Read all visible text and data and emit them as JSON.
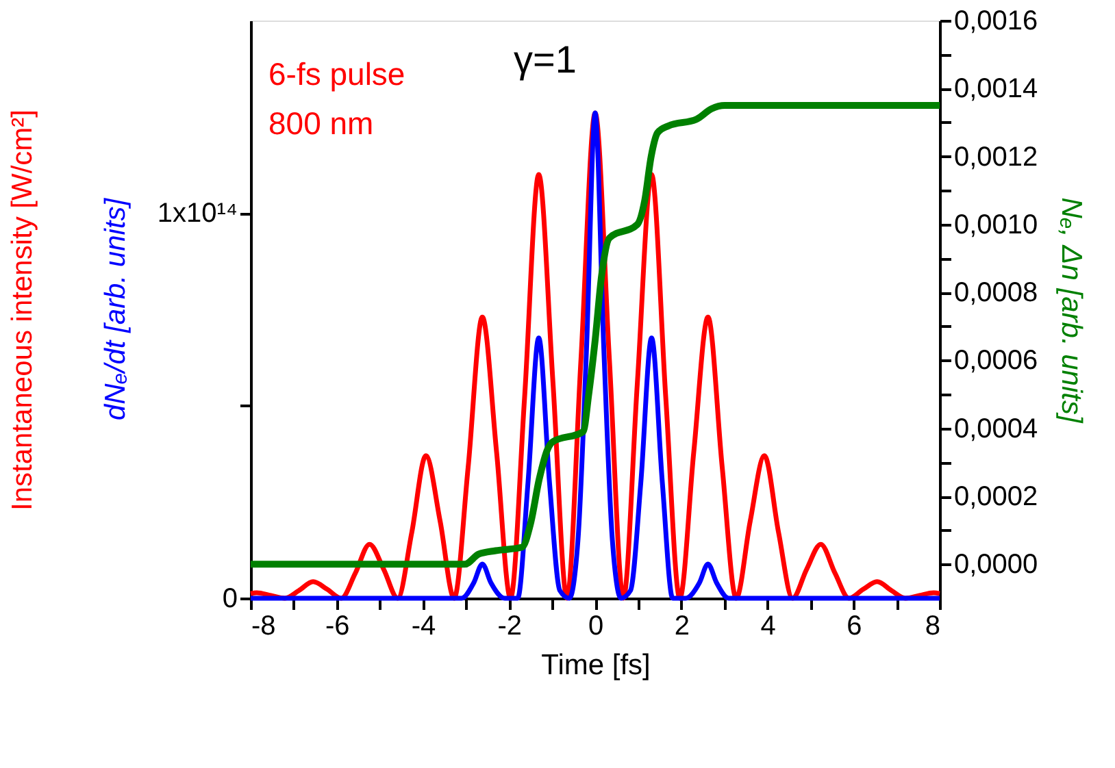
{
  "chart_data": {
    "type": "line",
    "annotations": [
      "6-fs pulse",
      "800 nm",
      "γ=1"
    ],
    "xlabel": "Time [fs]",
    "ylabel": "Instantaneous intensity [W/cm²]",
    "y2label": "Nₑ, Δn [arb. units]",
    "xlim": [
      -8,
      8
    ],
    "xticks": [
      -8,
      {
        "value": -7,
        "label": null
      },
      -6,
      {
        "value": -5,
        "label": null
      },
      -4,
      {
        "value": -3,
        "label": null
      },
      -2,
      {
        "value": -1,
        "label": null
      },
      0,
      {
        "value": 1,
        "label": null
      },
      2,
      {
        "value": 3,
        "label": null
      },
      4,
      {
        "value": 5,
        "label": null
      },
      6,
      {
        "value": 7,
        "label": null
      },
      8
    ],
    "ylim": [
      0,
      150000000000000.0
    ],
    "yticks": [
      0,
      {
        "value": 50000000000000.0,
        "label": null
      },
      {
        "value": 100000000000000.0,
        "label": "1x10¹⁴"
      }
    ],
    "y2lim": [
      -0.0001,
      0.0016
    ],
    "y2ticks": [
      {
        "value": 0,
        "label": "0,0000"
      },
      {
        "value": 0.0001,
        "label": null
      },
      {
        "value": 0.0002,
        "label": "0,0002"
      },
      {
        "value": 0.0003,
        "label": null
      },
      {
        "value": 0.0004,
        "label": "0,0004"
      },
      {
        "value": 0.0005,
        "label": null
      },
      {
        "value": 0.0006,
        "label": "0,0006"
      },
      {
        "value": 0.0007,
        "label": null
      },
      {
        "value": 0.0008,
        "label": "0,0008"
      },
      {
        "value": 0.0009,
        "label": null
      },
      {
        "value": 0.001,
        "label": "0,0010"
      },
      {
        "value": 0.0011,
        "label": null
      },
      {
        "value": 0.0012,
        "label": "0,0012"
      },
      {
        "value": 0.0013,
        "label": null
      },
      {
        "value": 0.0014,
        "label": "0,0014"
      },
      {
        "value": 0.0015,
        "label": null
      },
      {
        "value": 0.0016,
        "label": "0,0016"
      }
    ],
    "grid": false,
    "series": [
      {
        "color": "#ff0000",
        "x": [
          -8,
          -7.86,
          -7.53,
          -7.205,
          -6.88,
          -6.55,
          -6.22,
          -5.895,
          -5.57,
          -5.24,
          -4.91,
          -4.585,
          -4.26,
          -3.93,
          -3.6,
          -3.275,
          -2.95,
          -2.62,
          -2.29,
          -1.965,
          -1.64,
          -1.31,
          -0.98,
          -0.655,
          -0.33,
          0,
          0.33,
          0.655,
          0.98,
          1.31,
          1.64,
          1.965,
          2.29,
          2.62,
          2.95,
          3.275,
          3.6,
          3.93,
          4.26,
          4.585,
          4.91,
          5.24,
          5.57,
          5.895,
          6.22,
          6.55,
          6.88,
          7.205,
          7.53,
          7.86,
          8
        ],
        "values": [
          1200000000000.0,
          1400000000000.0,
          700000000000.0,
          0,
          2000000000000.0,
          4300000000000.0,
          2300000000000.0,
          0,
          6500000000000.0,
          14000000000000.0,
          7500000000000.0,
          0,
          17000000000000.0,
          37000000000000.0,
          20000000000000.0,
          0,
          34000000000000.0,
          73000000000000.0,
          38000000000000.0,
          0,
          52000000000000.0,
          110000000000000.0,
          56000000000000.0,
          0,
          62000000000000.0,
          126000000000000.0,
          62000000000000.0,
          0,
          56000000000000.0,
          110000000000000.0,
          52000000000000.0,
          0,
          38000000000000.0,
          73000000000000.0,
          34000000000000.0,
          0,
          20000000000000.0,
          37000000000000.0,
          17000000000000.0,
          0,
          7500000000000.0,
          14000000000000.0,
          6500000000000.0,
          0,
          2300000000000.0,
          4300000000000.0,
          2000000000000.0,
          0,
          700000000000.0,
          1400000000000.0,
          1200000000000.0
        ]
      },
      {
        "name": "dNₑ/dt [arb. units]",
        "color": "#0000ff",
        "x": [
          -8,
          -3.1,
          -2.82,
          -2.62,
          -2.42,
          -2.1,
          -1.8,
          -1.56,
          -1.31,
          -1.06,
          -0.82,
          -0.6,
          -0.4,
          -0.2,
          0,
          0.2,
          0.4,
          0.6,
          0.82,
          1.06,
          1.31,
          1.56,
          1.8,
          2.1,
          2.42,
          2.62,
          2.82,
          3.1,
          8
        ],
        "values": [
          0,
          0,
          4000000000000.0,
          8900000000000.0,
          4000000000000.0,
          0,
          0,
          30000000000000.0,
          67600000000000.0,
          30000000000000.0,
          2000000000000.0,
          0,
          15000000000000.0,
          65000000000000.0,
          126000000000000.0,
          65000000000000.0,
          15000000000000.0,
          0,
          2000000000000.0,
          30000000000000.0,
          67600000000000.0,
          30000000000000.0,
          0,
          0,
          4000000000000.0,
          8900000000000.0,
          4000000000000.0,
          0,
          0
        ]
      },
      {
        "color": "#008000",
        "axis": "y2",
        "x": [
          -8,
          -3.03,
          -2.7,
          -2.31,
          -1.7,
          -1.5,
          -1.3,
          -1.1,
          -0.99,
          -0.28,
          -0.15,
          0,
          0.15,
          0.33,
          0.98,
          1.15,
          1.3,
          1.45,
          1.7,
          2.36,
          2.7,
          3.01,
          8
        ],
        "values": [
          0,
          0,
          3e-05,
          4e-05,
          5e-05,
          0.00012,
          0.00025,
          0.00034,
          0.00036,
          0.00039,
          0.0005,
          0.00066,
          0.00085,
          0.00096,
          0.001,
          0.00107,
          0.0012,
          0.00127,
          0.00129,
          0.00131,
          0.00134,
          0.00135,
          0.00135
        ]
      }
    ]
  }
}
